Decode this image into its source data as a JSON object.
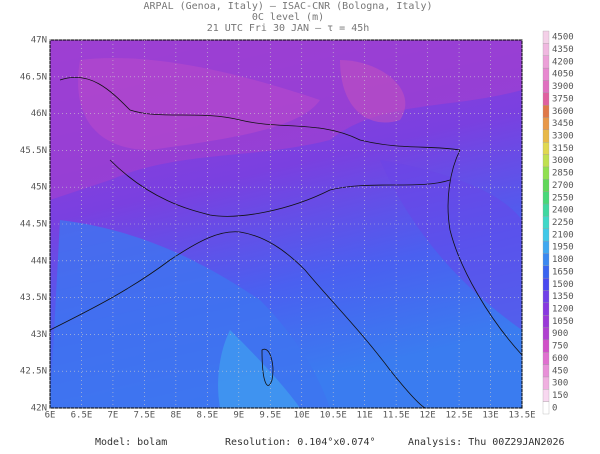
{
  "header": {
    "lines": [
      "ARPAL (Genoa, Italy)  —  ISAC-CNR (Bologna, Italy)",
      "0C level (m)",
      "21 UTC Fri 30 JAN  —  τ = 45h"
    ]
  },
  "map": {
    "x_ticks": [
      {
        "value": 6,
        "label": "6E"
      },
      {
        "value": 6.5,
        "label": "6.5E"
      },
      {
        "value": 7,
        "label": "7E"
      },
      {
        "value": 7.5,
        "label": "7.5E"
      },
      {
        "value": 8,
        "label": "8E"
      },
      {
        "value": 8.5,
        "label": "8.5E"
      },
      {
        "value": 9,
        "label": "9E"
      },
      {
        "value": 9.5,
        "label": "9.5E"
      },
      {
        "value": 10,
        "label": "10E"
      },
      {
        "value": 10.5,
        "label": "10.5E"
      },
      {
        "value": 11,
        "label": "11E"
      },
      {
        "value": 11.5,
        "label": "11.5E"
      },
      {
        "value": 12,
        "label": "12E"
      },
      {
        "value": 12.5,
        "label": "12.5E"
      },
      {
        "value": 13,
        "label": "13E"
      },
      {
        "value": 13.5,
        "label": "13.5E"
      }
    ],
    "y_ticks": [
      {
        "value": 42,
        "label": "42N"
      },
      {
        "value": 42.5,
        "label": "42.5N"
      },
      {
        "value": 43,
        "label": "43N"
      },
      {
        "value": 43.5,
        "label": "43.5N"
      },
      {
        "value": 44,
        "label": "44N"
      },
      {
        "value": 44.5,
        "label": "44.5N"
      },
      {
        "value": 45,
        "label": "45N"
      },
      {
        "value": 45.5,
        "label": "45.5N"
      },
      {
        "value": 46,
        "label": "46N"
      },
      {
        "value": 46.5,
        "label": "46.5N"
      },
      {
        "value": 47,
        "label": "47N"
      }
    ]
  },
  "colorbar": {
    "levels": [
      0,
      150,
      300,
      450,
      600,
      750,
      900,
      1050,
      1200,
      1350,
      1500,
      1650,
      1800,
      1950,
      2100,
      2250,
      2400,
      2550,
      2700,
      2850,
      3000,
      3150,
      3300,
      3450,
      3600,
      3750,
      3900,
      4050,
      4200,
      4350,
      4500
    ],
    "colors": [
      "#ffffff",
      "#f8d8f0",
      "#f0b0e0",
      "#e890d8",
      "#e070d0",
      "#d050c8",
      "#b040d0",
      "#9a38d8",
      "#8838e0",
      "#7040e8",
      "#4a4af0",
      "#3a64f0",
      "#3a88f0",
      "#40a8f0",
      "#40c8e8",
      "#40d8c8",
      "#40d8a0",
      "#48d878",
      "#60d858",
      "#90e050",
      "#c0e050",
      "#e0d850",
      "#e8b848",
      "#e89848",
      "#e07848",
      "#e060a0",
      "#e070c0",
      "#e888d0",
      "#eca0d8",
      "#f0b8e0",
      "#f4d0e8"
    ]
  },
  "footer": {
    "model": "Model: bolam",
    "resolution": "Resolution: 0.104°x0.074°",
    "analysis": "Analysis: Thu 00Z29JAN2026"
  }
}
